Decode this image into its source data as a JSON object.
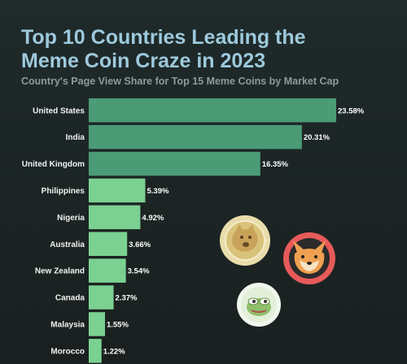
{
  "header": {
    "title_line1": "Top 10 Countries Leading the",
    "title_line2": "Meme Coin Craze in 2023",
    "subtitle": "Country's Page View Share for Top 15 Meme Coins by Market Cap"
  },
  "colors": {
    "top_bars": "#4a9b76",
    "other_bars": "#7bd191",
    "background": "#1e2727",
    "title": "#9dc9dc"
  },
  "chart_data": {
    "type": "bar",
    "orientation": "horizontal",
    "title": "Top 10 Countries Leading the Meme Coin Craze in 2023",
    "subtitle": "Country's Page View Share for Top 15 Meme Coins by Market Cap",
    "categories": [
      "United States",
      "India",
      "United Kingdom",
      "Philippines",
      "Nigeria",
      "Australia",
      "New Zealand",
      "Canada",
      "Malaysia",
      "Morocco"
    ],
    "values": [
      23.58,
      20.31,
      16.35,
      5.39,
      4.92,
      3.66,
      3.54,
      2.37,
      1.55,
      1.22
    ],
    "value_labels": [
      "23.58%",
      "20.31%",
      "16.35%",
      "5.39%",
      "4.92%",
      "3.66%",
      "3.54%",
      "2.37%",
      "1.55%",
      "1.22%"
    ],
    "unit": "%",
    "grid": false
  },
  "decorations": [
    "doge-coin-icon",
    "shiba-inu-coin-icon",
    "pepe-coin-icon"
  ]
}
